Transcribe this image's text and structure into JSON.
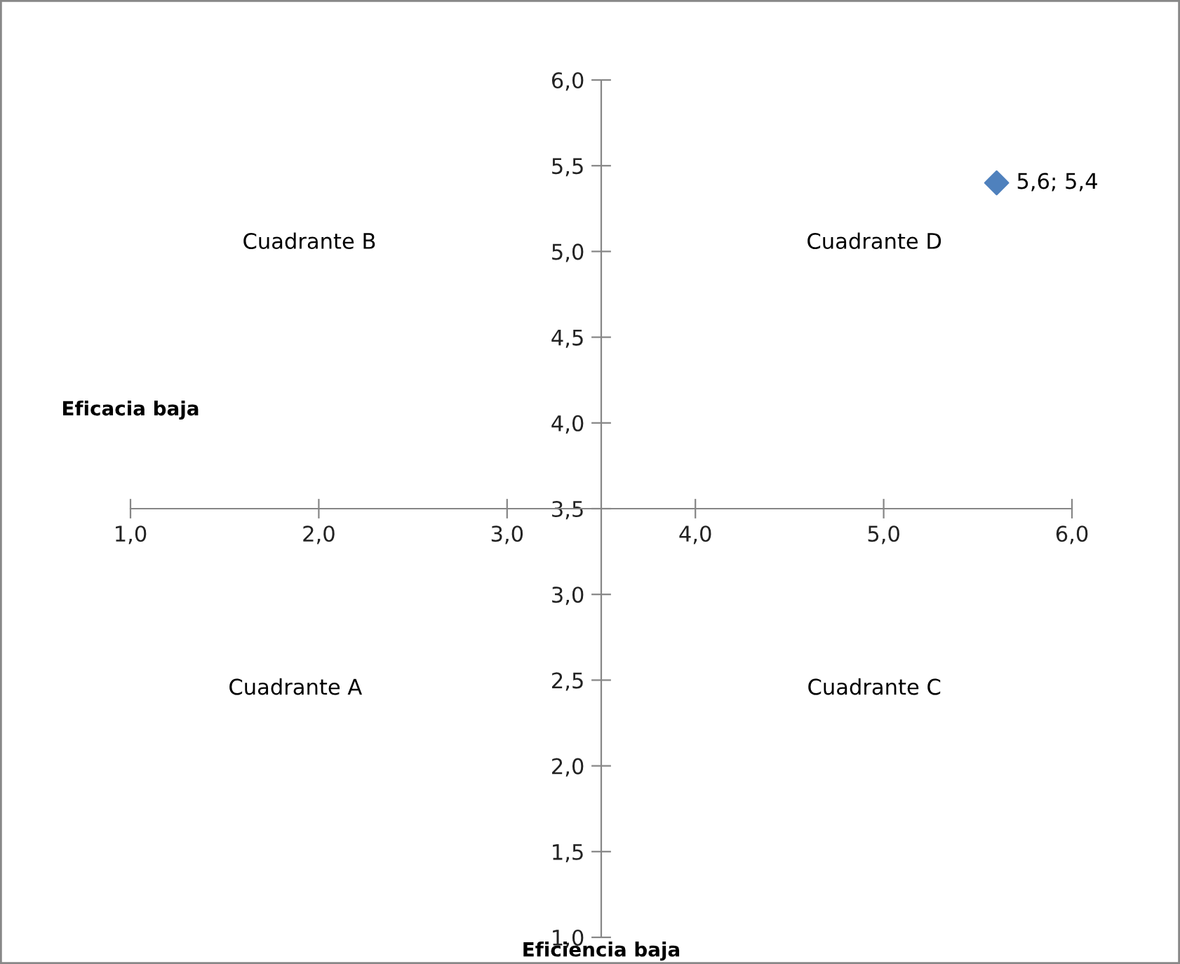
{
  "chart_data": {
    "type": "scatter",
    "xlabel": "Eficiencia baja",
    "ylabel": "Eficacia baja",
    "x": [
      5.6
    ],
    "values": [
      5.4
    ],
    "value_labels": [
      "5,6; 5,4"
    ],
    "color": "#4f81bd",
    "marker": "diamond",
    "xlim": [
      1,
      6
    ],
    "ylim": [
      1,
      6
    ],
    "xticks": [
      {
        "value": 1,
        "label": "1,0"
      },
      {
        "value": 2,
        "label": "2,0"
      },
      {
        "value": 3,
        "label": "3,0"
      },
      {
        "value": 4,
        "label": "4,0"
      },
      {
        "value": 5,
        "label": "5,0"
      },
      {
        "value": 6,
        "label": "6,0"
      }
    ],
    "yticks": [
      {
        "value": 1,
        "label": "1,0"
      },
      {
        "value": 1.5,
        "label": "1,5"
      },
      {
        "value": 2,
        "label": "2,0"
      },
      {
        "value": 2.5,
        "label": "2,5"
      },
      {
        "value": 3,
        "label": "3,0"
      },
      {
        "value": 3.5,
        "label": "3,5"
      },
      {
        "value": 4,
        "label": "4,0"
      },
      {
        "value": 4.5,
        "label": "4,5"
      },
      {
        "value": 5,
        "label": "5,0"
      },
      {
        "value": 5.5,
        "label": "5,5"
      },
      {
        "value": 6,
        "label": "6,0"
      }
    ],
    "annotations": [
      "Cuadrante B",
      "Cuadrante D",
      "Cuadrante A",
      "Cuadrante C"
    ],
    "grid": false,
    "legend": false
  }
}
